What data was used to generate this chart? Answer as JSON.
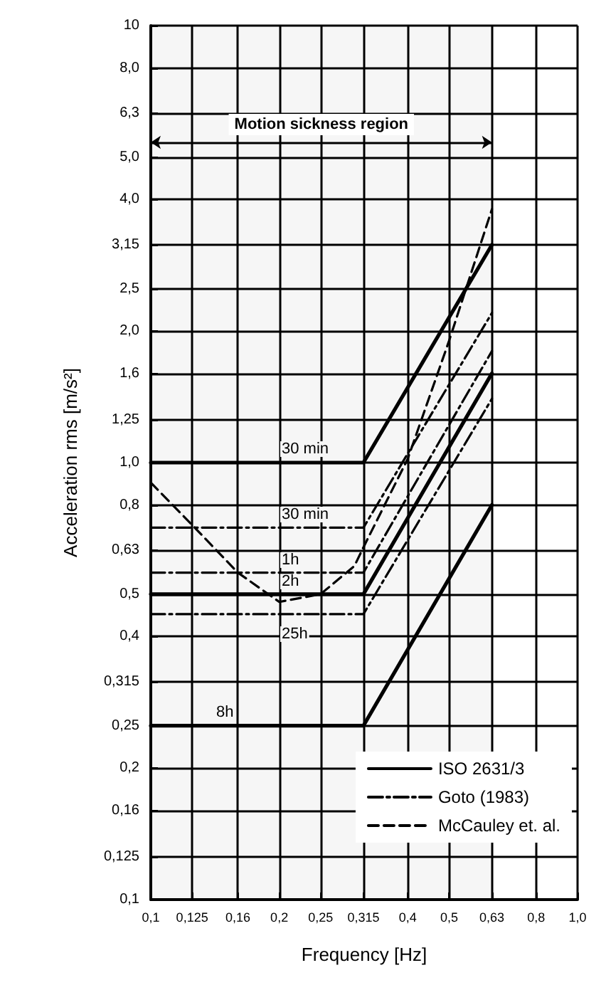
{
  "chart_data": {
    "type": "line",
    "xlabel": "Frequency [Hz]",
    "ylabel": "Acceleration rms [m/s²]",
    "log": "xy",
    "grid": true,
    "legend": "bottom right",
    "xlim": [
      0.1,
      1.0
    ],
    "ylim": [
      0.1,
      10
    ],
    "xticks": [
      {
        "value": 0.1,
        "label": "0,1"
      },
      {
        "value": 0.125,
        "label": "0,125"
      },
      {
        "value": 0.16,
        "label": "0,16"
      },
      {
        "value": 0.2,
        "label": "0,2"
      },
      {
        "value": 0.25,
        "label": "0,25"
      },
      {
        "value": 0.315,
        "label": "0,315"
      },
      {
        "value": 0.4,
        "label": "0,4"
      },
      {
        "value": 0.5,
        "label": "0,5"
      },
      {
        "value": 0.63,
        "label": "0,63"
      },
      {
        "value": 0.8,
        "label": "0,8"
      },
      {
        "value": 1.0,
        "label": "1,0"
      }
    ],
    "yticks": [
      {
        "value": 0.1,
        "label": "0,1"
      },
      {
        "value": 0.125,
        "label": "0,125"
      },
      {
        "value": 0.16,
        "label": "0,16"
      },
      {
        "value": 0.2,
        "label": "0,2"
      },
      {
        "value": 0.25,
        "label": "0,25"
      },
      {
        "value": 0.315,
        "label": "0,315"
      },
      {
        "value": 0.4,
        "label": "0,4"
      },
      {
        "value": 0.5,
        "label": "0,5"
      },
      {
        "value": 0.63,
        "label": "0,63"
      },
      {
        "value": 0.8,
        "label": "0,8"
      },
      {
        "value": 1.0,
        "label": "1,0"
      },
      {
        "value": 1.25,
        "label": "1,25"
      },
      {
        "value": 1.6,
        "label": "1,6"
      },
      {
        "value": 2.0,
        "label": "2,0"
      },
      {
        "value": 2.5,
        "label": "2,5"
      },
      {
        "value": 3.15,
        "label": "3,15"
      },
      {
        "value": 4.0,
        "label": "4,0"
      },
      {
        "value": 5.0,
        "label": "5,0"
      },
      {
        "value": 6.3,
        "label": "6,3"
      },
      {
        "value": 8.0,
        "label": "8,0"
      },
      {
        "value": 10,
        "label": "10"
      }
    ],
    "series": [
      {
        "name": "ISO 2631/3",
        "color": "#000000",
        "line_style": "solid",
        "x": [
          0.1,
          0.315,
          0.63
        ],
        "values": [
          1.0,
          1.0,
          3.15
        ]
      },
      {
        "color": "#000000",
        "line_style": "solid",
        "x": [
          0.1,
          0.315,
          0.63
        ],
        "values": [
          0.5,
          0.5,
          1.6
        ]
      },
      {
        "color": "#000000",
        "line_style": "solid",
        "x": [
          0.1,
          0.315,
          0.63
        ],
        "values": [
          0.25,
          0.25,
          0.8
        ]
      },
      {
        "name": "Goto (1983)",
        "color": "#000000",
        "line_style": "dashdot",
        "x": [
          0.1,
          0.315,
          0.63
        ],
        "values": [
          0.71,
          0.71,
          2.2
        ]
      },
      {
        "color": "#000000",
        "line_style": "dashdot",
        "x": [
          0.1,
          0.315,
          0.63
        ],
        "values": [
          0.56,
          0.56,
          1.8
        ]
      },
      {
        "color": "#000000",
        "line_style": "dashdot",
        "x": [
          0.1,
          0.315,
          0.63
        ],
        "values": [
          0.45,
          0.45,
          1.4
        ]
      },
      {
        "name": "McCauley et. al.",
        "color": "#000000",
        "line_style": "dashed",
        "x": [
          0.1,
          0.125,
          0.16,
          0.2,
          0.25,
          0.3,
          0.315,
          0.4,
          0.5,
          0.63
        ],
        "values": [
          0.9,
          0.72,
          0.56,
          0.48,
          0.5,
          0.58,
          0.64,
          1.02,
          1.9,
          3.8
        ]
      }
    ],
    "bands": [
      {
        "axis": "x",
        "from": 0.1,
        "to": 0.63,
        "label": "Motion sickness region"
      }
    ],
    "annotations": [
      "30 min",
      "30 min",
      "1h",
      "2h",
      "25h",
      "8h"
    ]
  }
}
